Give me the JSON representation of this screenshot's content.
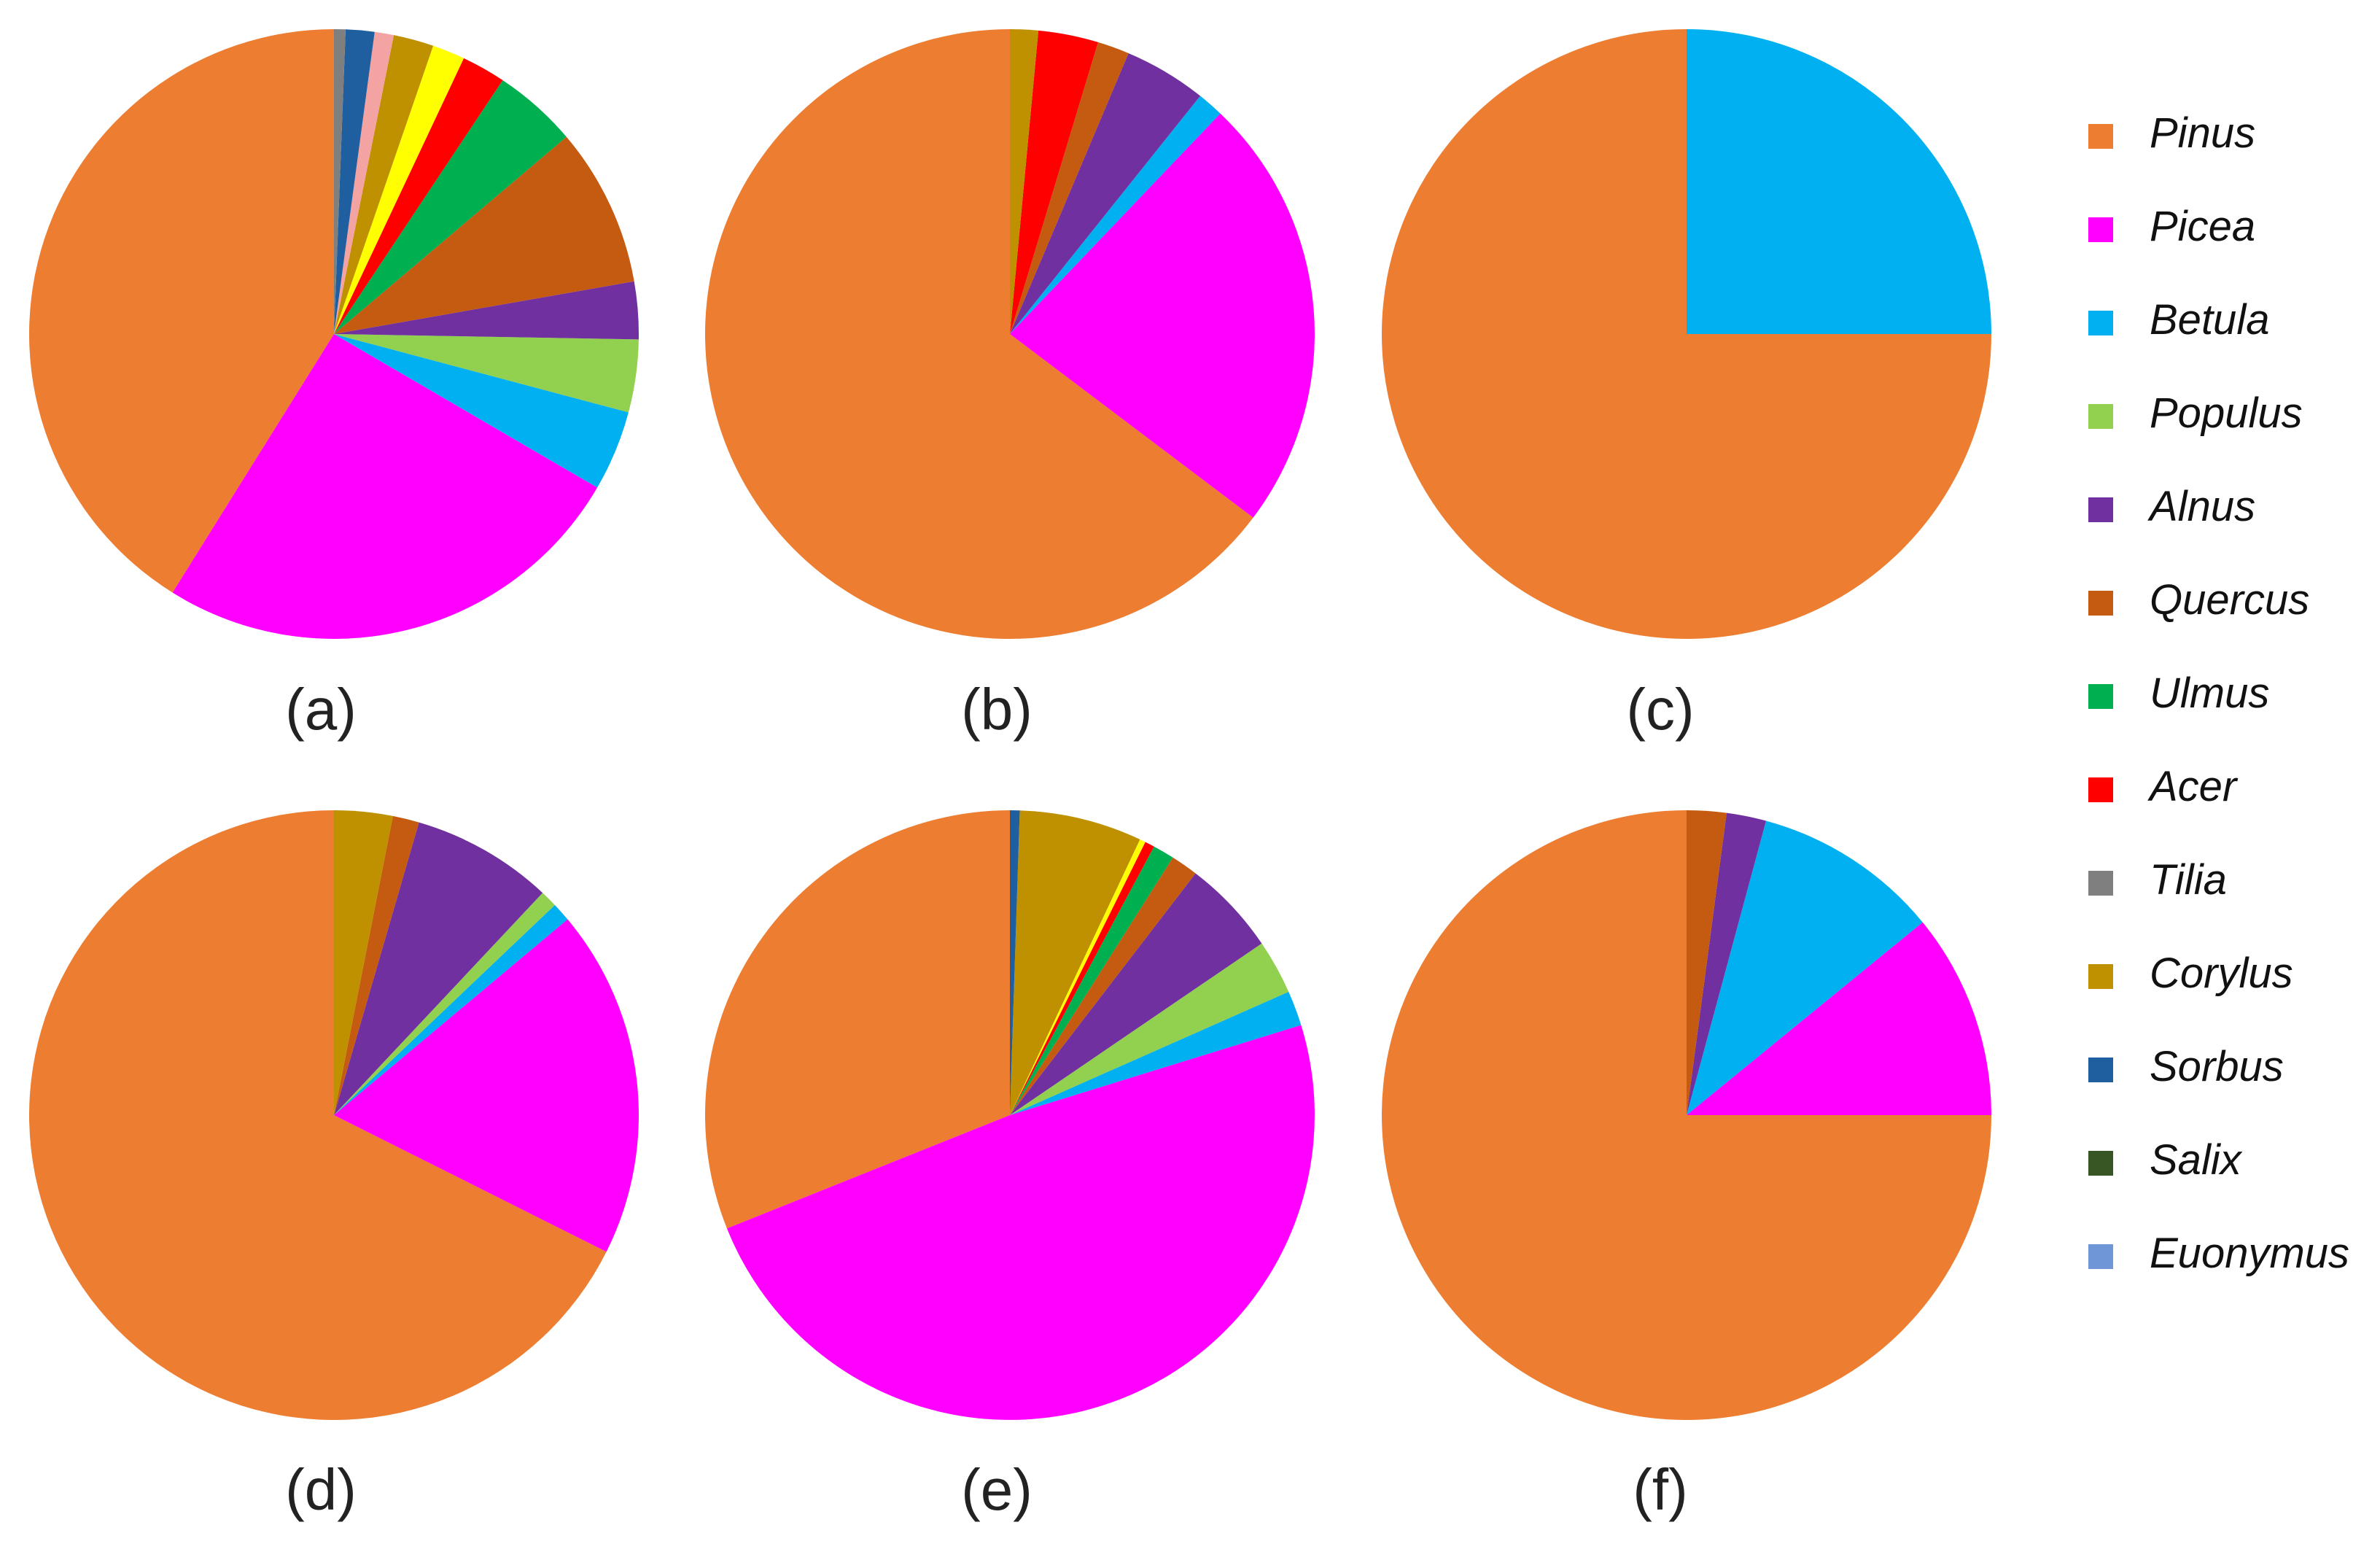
{
  "chart_data": [
    {
      "type": "pie",
      "title": "(a)",
      "slices": [
        {
          "name": "Pinus",
          "value": 40.5
        },
        {
          "name": "Picea",
          "value": 25.1
        },
        {
          "name": "Betula",
          "value": 4.2
        },
        {
          "name": "Populus",
          "value": 3.8
        },
        {
          "name": "Alnus",
          "value": 3.0
        },
        {
          "name": "Quercus",
          "value": 8.3
        },
        {
          "name": "Ulmus",
          "value": 4.4
        },
        {
          "name": "Acer",
          "value": 2.3
        },
        {
          "name": "Yellow",
          "value": 1.7
        },
        {
          "name": "Corylus",
          "value": 2.1
        },
        {
          "name": "Pink",
          "value": 1.0
        },
        {
          "name": "Sorbus",
          "value": 1.5
        },
        {
          "name": "Tilia",
          "value": 0.6
        }
      ]
    },
    {
      "type": "pie",
      "title": "(b)",
      "slices": [
        {
          "name": "Pinus",
          "value": 65.1
        },
        {
          "name": "Picea",
          "value": 23.3
        },
        {
          "name": "Betula",
          "value": 1.4
        },
        {
          "name": "Alnus",
          "value": 4.4
        },
        {
          "name": "Quercus",
          "value": 1.7
        },
        {
          "name": "Acer",
          "value": 3.2
        },
        {
          "name": "Corylus",
          "value": 1.5
        }
      ]
    },
    {
      "type": "pie",
      "title": "(c)",
      "slices": [
        {
          "name": "Pinus",
          "value": 75.0
        },
        {
          "name": "Betula",
          "value": 25.0
        }
      ]
    },
    {
      "type": "pie",
      "title": "(d)",
      "slices": [
        {
          "name": "Pinus",
          "value": 67.6
        },
        {
          "name": "Picea",
          "value": 18.5
        },
        {
          "name": "Betula",
          "value": 1.0
        },
        {
          "name": "Populus",
          "value": 0.9
        },
        {
          "name": "Alnus",
          "value": 7.5
        },
        {
          "name": "Quercus",
          "value": 1.4
        },
        {
          "name": "Corylus",
          "value": 3.1
        }
      ]
    },
    {
      "type": "pie",
      "title": "(e)",
      "slices": [
        {
          "name": "Pinus",
          "value": 30.1
        },
        {
          "name": "Picea",
          "value": 47.2
        },
        {
          "name": "Betula",
          "value": 1.8
        },
        {
          "name": "Populus",
          "value": 2.8
        },
        {
          "name": "Alnus",
          "value": 4.9
        },
        {
          "name": "Quercus",
          "value": 1.4
        },
        {
          "name": "Ulmus",
          "value": 1.1
        },
        {
          "name": "Acer",
          "value": 0.5
        },
        {
          "name": "Yellow",
          "value": 0.3
        },
        {
          "name": "Corylus",
          "value": 6.3
        },
        {
          "name": "Sorbus",
          "value": 0.5
        }
      ]
    },
    {
      "type": "pie",
      "title": "(f)",
      "slices": [
        {
          "name": "Pinus",
          "value": 75.0
        },
        {
          "name": "Picea",
          "value": 10.9
        },
        {
          "name": "Betula",
          "value": 9.9
        },
        {
          "name": "Alnus",
          "value": 2.1
        },
        {
          "name": "Quercus",
          "value": 2.1
        }
      ]
    }
  ],
  "colors": {
    "Pinus": "#ed7d31",
    "Picea": "#ff00ff",
    "Betula": "#00b0f0",
    "Populus": "#92d050",
    "Alnus": "#7030a0",
    "Quercus": "#c55a11",
    "Ulmus": "#00b050",
    "Acer": "#ff0000",
    "Tilia": "#7f7f7f",
    "Corylus": "#bf9000",
    "Sorbus": "#1f5fa0",
    "Salix": "#375623",
    "Euonymus": "#6f97d8",
    "Yellow": "#ffff00",
    "Pink": "#f4a3a3"
  },
  "legend": {
    "placement": "right",
    "entries": [
      "Pinus",
      "Picea",
      "Betula",
      "Populus",
      "Alnus",
      "Quercus",
      "Ulmus",
      "Acer",
      "Tilia",
      "Corylus",
      "Sorbus",
      "Salix",
      "Euonymus"
    ]
  }
}
